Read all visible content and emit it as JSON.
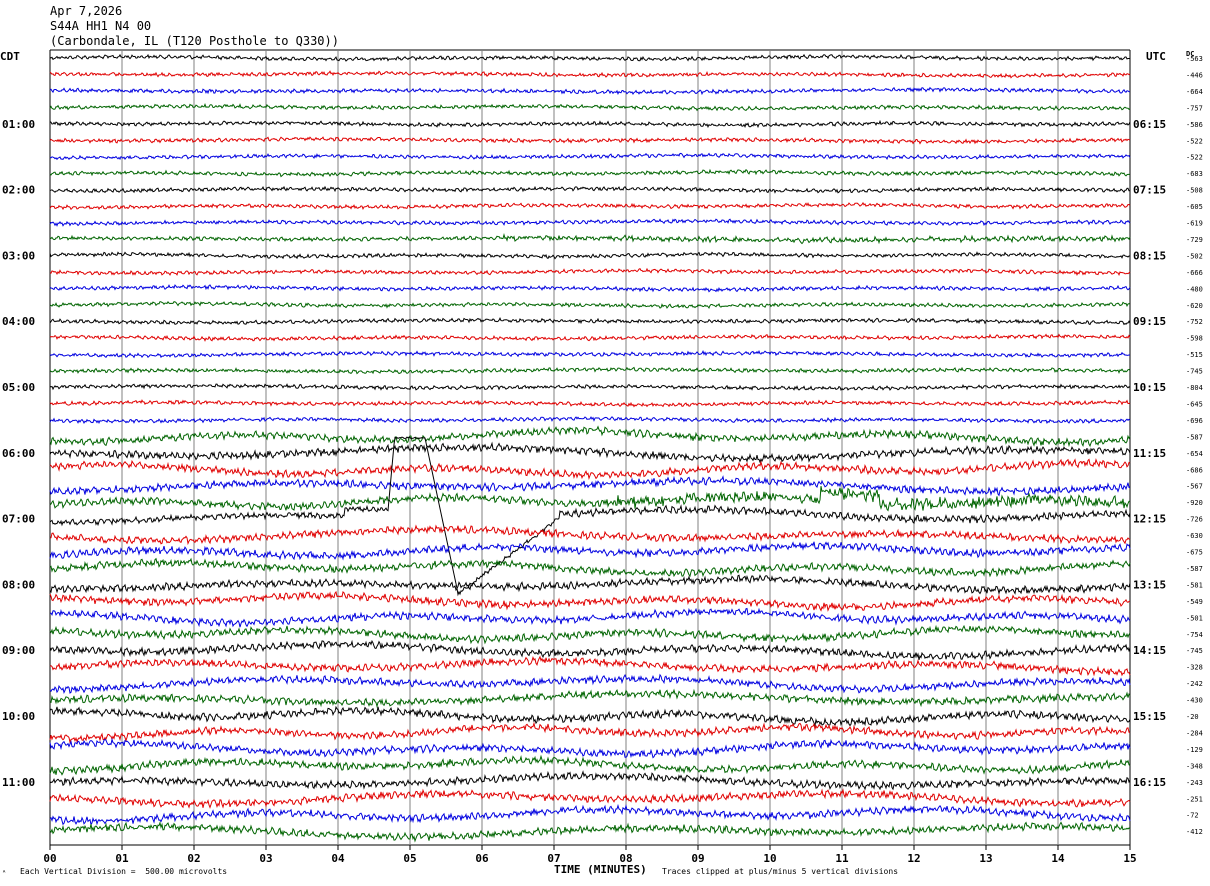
{
  "header": {
    "date": "Apr 7,2026",
    "station": "S44A HH1 N4 00",
    "location": "(Carbondale, IL (T120 Posthole to Q330))"
  },
  "labels": {
    "left_tz": "CDT",
    "right_tz": "UTC",
    "dc": "DC",
    "xlabel": "TIME (MINUTES)",
    "scale_note": "Each Vertical Division =  500.00 microvolts",
    "clip_note": "Traces clipped at plus/minus 5 vertical divisions"
  },
  "chart_data": {
    "type": "line",
    "title": "",
    "xlabel": "TIME (MINUTES)",
    "xlim": [
      0,
      15
    ],
    "x_ticks": [
      "00",
      "01",
      "02",
      "03",
      "04",
      "05",
      "06",
      "07",
      "08",
      "09",
      "10",
      "11",
      "12",
      "13",
      "14",
      "15"
    ],
    "grid": "vertical",
    "trace_count": 48,
    "trace_colors": [
      "#000000",
      "#e00000",
      "#0000e0",
      "#006400"
    ],
    "left_time_labels": [
      "01:00",
      "02:00",
      "03:00",
      "04:00",
      "05:00",
      "06:00",
      "07:00",
      "08:00",
      "09:00",
      "10:00",
      "11:00"
    ],
    "right_time_labels": [
      "06:15",
      "07:15",
      "08:15",
      "09:15",
      "10:15",
      "11:15",
      "12:15",
      "13:15",
      "14:15",
      "15:15",
      "16:15"
    ],
    "dc_offsets": [
      "-563",
      "-446",
      "-664",
      "-757",
      "-586",
      "-522",
      "-522",
      "-683",
      "-508",
      "-605",
      "-619",
      "-729",
      "-502",
      "-666",
      "-480",
      "-620",
      "-752",
      "-598",
      "-515",
      "-745",
      "-804",
      "-645",
      "-696",
      "-587",
      "-654",
      "-686",
      "-567",
      "-920",
      "-726",
      "-630",
      "-675",
      "-587",
      "-581",
      "-549",
      "-501",
      "-754",
      "-745",
      "-328",
      "-242",
      "-430",
      "-20",
      "-284",
      "-129",
      "-348",
      "-243",
      "-251",
      "-72",
      "-412"
    ]
  }
}
